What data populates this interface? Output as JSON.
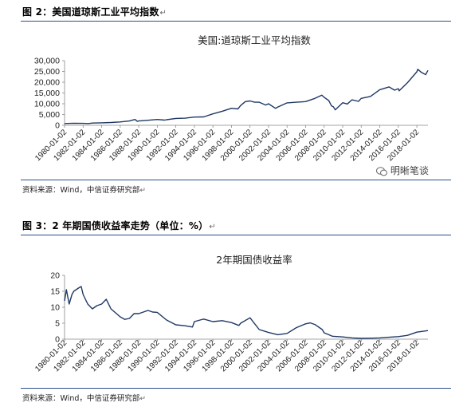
{
  "figures": [
    {
      "caption": "图 2：美国道琼斯工业平均指数",
      "source": "资料来源：Wind，中信证券研究部",
      "chart_data": {
        "type": "line",
        "title": "美国:道琼斯工业平均指数",
        "xlabel": "",
        "ylabel": "",
        "y_ticks": [
          "0",
          "5,000",
          "10,000",
          "15,000",
          "20,000",
          "25,000",
          "30,000"
        ],
        "y_tick_values": [
          0,
          5000,
          10000,
          15000,
          20000,
          25000,
          30000
        ],
        "ylim": [
          0,
          30000
        ],
        "x_ticks": [
          "1980-01-02",
          "1982-01-02",
          "1984-01-02",
          "1986-01-02",
          "1988-01-02",
          "1990-01-02",
          "1992-01-02",
          "1994-01-02",
          "1996-01-02",
          "1998-01-02",
          "2000-01-02",
          "2002-01-02",
          "2004-01-02",
          "2006-01-02",
          "2008-01-02",
          "2010-01-02",
          "2012-01-02",
          "2014-01-02",
          "2016-01-02",
          "2018-01-02"
        ],
        "x_range": [
          1980,
          2019.2
        ],
        "grid": false,
        "legend": "none",
        "color": "#1f3864",
        "series": [
          {
            "x": [
              1980,
              1981,
              1982,
              1982.6,
              1983,
              1984,
              1985,
              1986,
              1987,
              1987.6,
              1987.85,
              1988,
              1989,
              1990,
              1990.8,
              1991,
              1992,
              1993,
              1994,
              1995,
              1996,
              1997,
              1998,
              1998.7,
              1999,
              1999.5,
              2000,
              2000.5,
              2001,
              2001.7,
              2002,
              2002.75,
              2003,
              2004,
              2005,
              2006,
              2007,
              2007.75,
              2008,
              2008.5,
              2008.8,
              2009,
              2009.2,
              2010,
              2010.5,
              2011,
              2011.7,
              2012,
              2013,
              2014,
              2015,
              2015.6,
              2016,
              2016.1,
              2017,
              2018,
              2018.1,
              2018.5,
              2018.95,
              2019.2
            ],
            "y": [
              830,
              950,
              880,
              800,
              1050,
              1150,
              1300,
              1550,
              2000,
              2700,
              1800,
              2000,
              2350,
              2700,
              2400,
              2600,
              3200,
              3300,
              3800,
              3900,
              5300,
              6500,
              7900,
              7600,
              9200,
              11000,
              11300,
              10700,
              10700,
              9400,
              10000,
              7900,
              8500,
              10400,
              10700,
              11000,
              12500,
              14000,
              13000,
              11500,
              9000,
              8600,
              7200,
              10500,
              9900,
              11800,
              11100,
              12500,
              13400,
              16500,
              17800,
              16300,
              17000,
              16000,
              19800,
              24800,
              26000,
              24500,
              23500,
              25500
            ]
          }
        ]
      }
    },
    {
      "caption": "图 3：2 年期国债收益率走势（单位：%）",
      "source": "资料来源：Wind，中信证券研究部",
      "chart_data": {
        "type": "line",
        "title": "2年期国债收益率",
        "xlabel": "",
        "ylabel": "",
        "y_ticks": [
          "0",
          "5",
          "10",
          "15",
          "20"
        ],
        "y_tick_values": [
          0,
          5,
          10,
          15,
          20
        ],
        "ylim": [
          0,
          20
        ],
        "x_ticks": [
          "1980-01-02",
          "1982-01-02",
          "1984-01-02",
          "1986-01-02",
          "1988-01-02",
          "1990-01-02",
          "1992-01-02",
          "1994-01-02",
          "1996-01-02",
          "1998-01-02",
          "2000-01-02",
          "2002-01-02",
          "2004-01-02",
          "2006-01-02",
          "2008-01-02",
          "2010-01-02",
          "2012-01-02",
          "2014-01-02",
          "2016-01-02",
          "2018-01-02"
        ],
        "x_range": [
          1980,
          2019.2
        ],
        "grid": false,
        "legend": "none",
        "color": "#1f3864",
        "series": [
          {
            "x": [
              1980,
              1980.2,
              1980.5,
              1980.8,
              1981,
              1981.5,
              1981.8,
              1982,
              1982.5,
              1983,
              1983.5,
              1984,
              1984.5,
              1985,
              1986,
              1986.5,
              1987,
              1987.5,
              1988,
              1989,
              1989.5,
              1990,
              1991,
              1992,
              1993,
              1993.8,
              1994,
              1995,
              1996,
              1997,
              1998,
              1998.8,
              1999,
              2000,
              2001,
              2001.8,
              2002,
              2003,
              2004,
              2005,
              2006,
              2006.5,
              2007,
              2007.8,
              2008,
              2008.9,
              2009,
              2010,
              2011,
              2012,
              2013,
              2014,
              2015,
              2016,
              2017,
              2018,
              2019,
              2019.2
            ],
            "y": [
              12,
              15.5,
              11,
              14,
              15,
              16,
              16.5,
              14,
              11,
              9.5,
              10.5,
              11,
              12.5,
              9.5,
              7,
              6.2,
              6.5,
              8,
              8,
              9,
              8.5,
              8.4,
              6,
              4.5,
              4.2,
              3.8,
              5.5,
              6.3,
              5.5,
              5.8,
              5.2,
              4.3,
              5.0,
              6.7,
              3.0,
              2.3,
              2.1,
              1.4,
              1.8,
              3.6,
              4.8,
              5.1,
              4.6,
              3.0,
              2.0,
              0.9,
              0.9,
              0.7,
              0.4,
              0.25,
              0.3,
              0.4,
              0.6,
              0.8,
              1.2,
              2.2,
              2.6,
              2.7
            ]
          }
        ]
      }
    }
  ],
  "watermark": {
    "text": "明晰笔谈",
    "icon": "wechat-icon"
  }
}
